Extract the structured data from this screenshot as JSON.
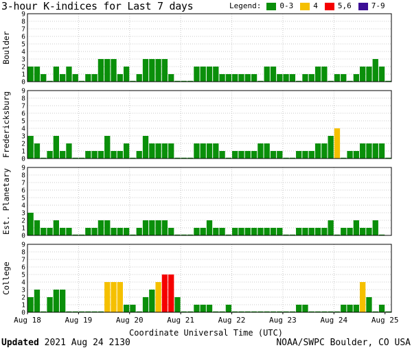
{
  "title": "3-hour K-indices for Last 7 days",
  "legend": {
    "label": "Legend:",
    "items": [
      {
        "label": "0-3",
        "color": "#0a8f0a"
      },
      {
        "label": "4",
        "color": "#f5c000"
      },
      {
        "label": "5,6",
        "color": "#f50000"
      },
      {
        "label": "7-9",
        "color": "#3c0f96"
      }
    ]
  },
  "footer": {
    "updated_label": "Updated",
    "updated_value": "2021 Aug 24 2130",
    "credit": "NOAA/SWPC Boulder, CO USA"
  },
  "chart_data": {
    "type": "bar",
    "xlabel": "Coordinate Universal Time (UTC)",
    "x_ticks": [
      "Aug 18",
      "Aug 19",
      "Aug 20",
      "Aug 21",
      "Aug 22",
      "Aug 23",
      "Aug 24",
      "Aug 25"
    ],
    "ylim": [
      0,
      9
    ],
    "y_ticks": [
      0,
      1,
      2,
      3,
      4,
      5,
      6,
      7,
      8,
      9
    ],
    "grid": true,
    "bins_per_day": 8,
    "color_scale": {
      "0-3": "#0a8f0a",
      "4": "#f5c000",
      "5,6": "#f50000",
      "7-9": "#3c0f96"
    },
    "panels": [
      {
        "name": "Boulder",
        "values": [
          2,
          2,
          1,
          0,
          2,
          1,
          2,
          1,
          0,
          1,
          1,
          3,
          3,
          3,
          1,
          2,
          0,
          1,
          3,
          3,
          3,
          3,
          1,
          0,
          0,
          0,
          2,
          2,
          2,
          2,
          1,
          1,
          1,
          1,
          1,
          1,
          0,
          2,
          2,
          1,
          1,
          1,
          0,
          1,
          1,
          2,
          2,
          0,
          1,
          1,
          0,
          1,
          2,
          2,
          3,
          2,
          0
        ]
      },
      {
        "name": "Fredericksburg",
        "values": [
          3,
          2,
          0,
          1,
          3,
          1,
          2,
          0,
          0,
          1,
          1,
          1,
          3,
          1,
          1,
          2,
          0,
          1,
          3,
          2,
          2,
          2,
          2,
          0,
          0,
          0,
          2,
          2,
          2,
          2,
          1,
          0,
          1,
          1,
          1,
          1,
          2,
          2,
          1,
          1,
          0,
          0,
          1,
          1,
          1,
          2,
          2,
          3,
          4,
          0,
          1,
          1,
          2,
          2,
          2,
          2,
          0
        ]
      },
      {
        "name": "Est. Planetary",
        "values": [
          3,
          2,
          1,
          1,
          2,
          1,
          1,
          0,
          0,
          1,
          1,
          2,
          2,
          1,
          1,
          1,
          0,
          1,
          2,
          2,
          2,
          2,
          1,
          0,
          0,
          0,
          1,
          1,
          2,
          1,
          1,
          0,
          1,
          1,
          1,
          1,
          1,
          1,
          1,
          1,
          0,
          0,
          1,
          1,
          1,
          1,
          1,
          2,
          0,
          1,
          1,
          2,
          1,
          1,
          2,
          0
        ]
      },
      {
        "name": "College",
        "values": [
          2,
          3,
          0,
          2,
          3,
          3,
          0,
          0,
          0,
          0,
          0,
          0,
          4,
          4,
          4,
          1,
          1,
          0,
          2,
          3,
          4,
          5,
          5,
          2,
          0,
          0,
          1,
          1,
          1,
          0,
          0,
          1,
          0,
          0,
          0,
          0,
          0,
          0,
          0,
          0,
          0,
          0,
          1,
          1,
          0,
          0,
          0,
          0,
          0,
          1,
          1,
          1,
          4,
          2,
          0,
          1,
          0
        ]
      }
    ]
  }
}
